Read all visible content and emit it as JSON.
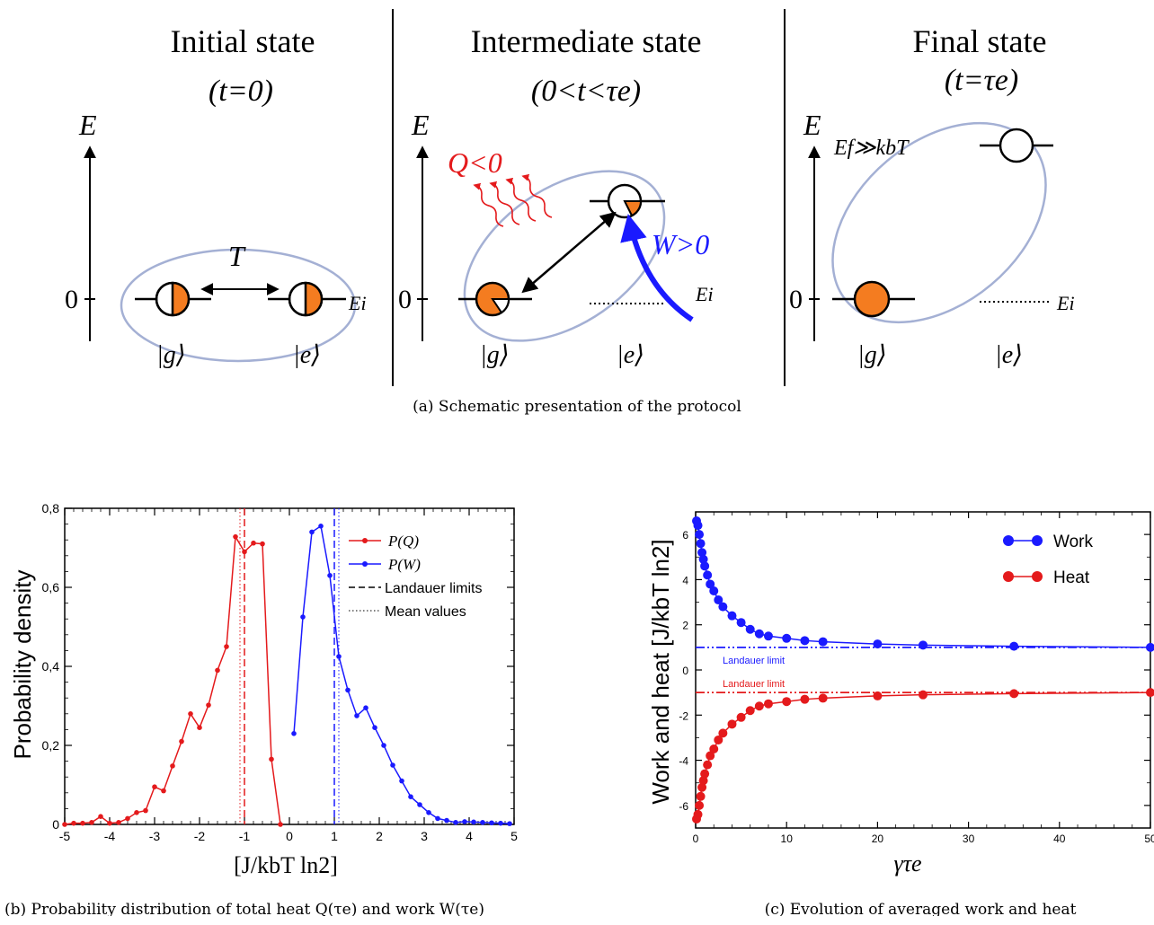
{
  "figure": {
    "panel_a": {
      "caption": "(a) Schematic presentation of the protocol",
      "initial": {
        "title": "Initial state",
        "time": "(t=0)",
        "temp_label": "T"
      },
      "intermediate": {
        "title": "Intermediate state",
        "time": "(0<t<τe)",
        "heat": "Q<0",
        "work": "W>0"
      },
      "final": {
        "title": "Final state",
        "time": "(t=τe)",
        "ef_label": "Ef≫kbT"
      },
      "axis_label": "E",
      "zero_label": "0",
      "ei_label": "Ei",
      "ket_g": "|g⟩",
      "ket_e": "|e⟩",
      "colors": {
        "orange": "#f47c20",
        "red": "#e41a1c",
        "blue": "#1a1aff",
        "ellipse": "#a4b0d4"
      }
    },
    "panel_b": {
      "caption": "(b) Probability distribution of total heat Q(τe) and work W(τe)",
      "chart_data": {
        "type": "line",
        "xlabel": "[J/kbT ln2]",
        "ylabel": "Probability density",
        "xlim": [
          -5,
          5
        ],
        "ylim": [
          0,
          0.8
        ],
        "x_ticks": [
          "-5",
          "-4",
          "-3",
          "-2",
          "-1",
          "0",
          "1",
          "2",
          "3",
          "4",
          "5"
        ],
        "y_ticks": [
          "0",
          "0,2",
          "0,4",
          "0,6",
          "0,8"
        ],
        "legend_position": "top-right",
        "legend": [
          "P(Q)",
          "P(W)",
          "Landauer limits",
          "Mean values"
        ],
        "series": [
          {
            "name": "P(Q)",
            "color": "#e41a1c",
            "x": [
              -5,
              -4.8,
              -4.6,
              -4.4,
              -4.2,
              -4.0,
              -3.8,
              -3.6,
              -3.4,
              -3.2,
              -3.0,
              -2.8,
              -2.6,
              -2.4,
              -2.2,
              -2.0,
              -1.8,
              -1.6,
              -1.4,
              -1.2,
              -1.0,
              -0.8,
              -0.6,
              -0.4,
              -0.2
            ],
            "y": [
              0,
              0.003,
              0.003,
              0.005,
              0.02,
              0.003,
              0.005,
              0.015,
              0.03,
              0.035,
              0.095,
              0.085,
              0.148,
              0.21,
              0.28,
              0.245,
              0.302,
              0.39,
              0.45,
              0.728,
              0.69,
              0.712,
              0.71,
              0.165,
              0
            ]
          },
          {
            "name": "P(W)",
            "color": "#1a1aff",
            "x": [
              0.1,
              0.3,
              0.5,
              0.7,
              0.9,
              1.1,
              1.3,
              1.5,
              1.7,
              1.9,
              2.1,
              2.3,
              2.5,
              2.7,
              2.9,
              3.1,
              3.3,
              3.5,
              3.7,
              3.9,
              4.1,
              4.3,
              4.5,
              4.7,
              4.9
            ],
            "y": [
              0.23,
              0.525,
              0.74,
              0.755,
              0.63,
              0.425,
              0.34,
              0.275,
              0.295,
              0.245,
              0.2,
              0.15,
              0.11,
              0.07,
              0.05,
              0.03,
              0.015,
              0.01,
              0.005,
              0.007,
              0.006,
              0.005,
              0.004,
              0.003,
              0.002
            ]
          }
        ],
        "landauer_limits": [
          -1,
          1
        ],
        "mean_values": [
          -1.1,
          1.1
        ]
      }
    },
    "panel_c": {
      "caption": "(c) Evolution of averaged work and heat",
      "chart_data": {
        "type": "line",
        "xlabel": "γτe",
        "ylabel": "Work and heat [J/kbT ln2]",
        "xlim": [
          0,
          50
        ],
        "ylim": [
          -7,
          7
        ],
        "x_ticks": [
          "0",
          "10",
          "20",
          "30",
          "40",
          "50"
        ],
        "y_ticks": [
          "-6",
          "-4",
          "-2",
          "0",
          "2",
          "4",
          "6"
        ],
        "legend_position": "top-right",
        "legend": [
          "Work",
          "Heat"
        ],
        "annotations": [
          "Landauer limit",
          "Landauer limit"
        ],
        "landauer_limits": [
          1,
          -1
        ],
        "series": [
          {
            "name": "Work",
            "color": "#1a1aff",
            "x": [
              0.1,
              0.25,
              0.4,
              0.55,
              0.7,
              0.85,
              1.0,
              1.3,
              1.6,
              2.0,
              2.5,
              3.0,
              4.0,
              5.0,
              6.0,
              7.0,
              8.0,
              10,
              12,
              14,
              20,
              25,
              35,
              50
            ],
            "y": [
              6.6,
              6.4,
              6.0,
              5.6,
              5.2,
              4.9,
              4.6,
              4.2,
              3.8,
              3.5,
              3.1,
              2.8,
              2.4,
              2.1,
              1.8,
              1.6,
              1.5,
              1.4,
              1.3,
              1.25,
              1.15,
              1.1,
              1.05,
              1.0
            ]
          },
          {
            "name": "Heat",
            "color": "#e41a1c",
            "x": [
              0.1,
              0.25,
              0.4,
              0.55,
              0.7,
              0.85,
              1.0,
              1.3,
              1.6,
              2.0,
              2.5,
              3.0,
              4.0,
              5.0,
              6.0,
              7.0,
              8.0,
              10,
              12,
              14,
              20,
              25,
              35,
              50
            ],
            "y": [
              -6.6,
              -6.4,
              -6.0,
              -5.6,
              -5.2,
              -4.9,
              -4.6,
              -4.2,
              -3.8,
              -3.5,
              -3.1,
              -2.8,
              -2.4,
              -2.1,
              -1.8,
              -1.6,
              -1.5,
              -1.4,
              -1.3,
              -1.25,
              -1.15,
              -1.1,
              -1.05,
              -1.0
            ]
          }
        ]
      }
    }
  }
}
